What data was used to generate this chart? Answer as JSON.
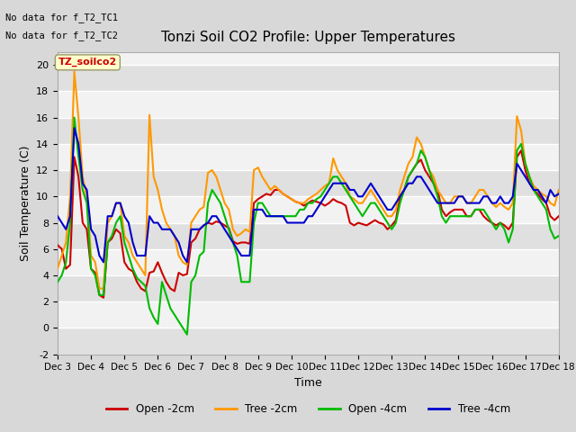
{
  "title": "Tonzi Soil CO2 Profile: Upper Temperatures",
  "xlabel": "Time",
  "ylabel": "Soil Temperature (C)",
  "ylim": [
    -2,
    21
  ],
  "yticks": [
    -2,
    0,
    2,
    4,
    6,
    8,
    10,
    12,
    14,
    16,
    18,
    20
  ],
  "no_data_text": [
    "No data for f_T2_TC1",
    "No data for f_T2_TC2"
  ],
  "annotation_box": "TZ_soilco2",
  "bg_color": "#e8e8e8",
  "plot_bg_color": "#f0f0f0",
  "grid_color": "#ffffff",
  "series": {
    "open_2cm": {
      "color": "#cc0000",
      "label": "Open -2cm",
      "linestyle": "-",
      "linewidth": 1.5
    },
    "tree_2cm": {
      "color": "#ff9900",
      "label": "Tree -2cm",
      "linestyle": "-",
      "linewidth": 1.5
    },
    "open_4cm": {
      "color": "#00bb00",
      "label": "Open -4cm",
      "linestyle": "-",
      "linewidth": 1.5
    },
    "tree_4cm": {
      "color": "#0000cc",
      "label": "Tree -4cm",
      "linestyle": "-",
      "linewidth": 1.5
    }
  },
  "xtick_labels": [
    "Dec 3",
    "Dec 4",
    "Dec 5",
    "Dec 6",
    "Dec 7",
    "Dec 8",
    "Dec 9",
    "Dec 10",
    "Dec 11",
    "Dec 12",
    "Dec 13",
    "Dec 14",
    "Dec 15",
    "Dec 16",
    "Dec 17",
    "Dec 18"
  ],
  "open_2cm": [
    6.3,
    6.0,
    4.5,
    4.8,
    13.0,
    11.5,
    8.0,
    7.5,
    4.5,
    4.2,
    2.5,
    2.3,
    6.5,
    6.8,
    7.5,
    7.2,
    5.0,
    4.5,
    4.3,
    3.5,
    3.0,
    2.8,
    4.2,
    4.3,
    5.0,
    4.2,
    3.5,
    3.0,
    2.8,
    4.2,
    4.0,
    4.1,
    6.5,
    6.8,
    7.5,
    7.8,
    8.0,
    7.9,
    8.1,
    8.0,
    7.8,
    7.6,
    6.6,
    6.4,
    6.5,
    6.5,
    6.4,
    9.5,
    9.8,
    10.0,
    10.2,
    10.1,
    10.5,
    10.5,
    10.2,
    10.0,
    9.8,
    9.6,
    9.5,
    9.3,
    9.5,
    9.7,
    9.6,
    9.5,
    9.3,
    9.5,
    9.8,
    9.6,
    9.5,
    9.3,
    8.0,
    7.8,
    8.0,
    7.9,
    7.8,
    8.0,
    8.2,
    8.0,
    7.9,
    7.5,
    7.8,
    8.2,
    10.0,
    10.5,
    11.5,
    12.0,
    12.5,
    12.8,
    12.0,
    11.5,
    11.0,
    10.5,
    9.0,
    8.5,
    8.8,
    9.0,
    9.0,
    9.0,
    8.5,
    8.5,
    9.0,
    9.0,
    8.5,
    8.2,
    8.0,
    7.8,
    8.0,
    7.8,
    7.5,
    8.0,
    13.0,
    13.5,
    12.0,
    11.0,
    10.5,
    10.2,
    9.8,
    9.5,
    8.5,
    8.2,
    8.5
  ],
  "tree_2cm": [
    4.5,
    5.5,
    6.5,
    10.0,
    19.5,
    16.0,
    11.5,
    10.0,
    5.5,
    5.0,
    3.0,
    3.0,
    8.0,
    8.5,
    9.5,
    9.5,
    7.0,
    6.5,
    5.5,
    5.0,
    4.5,
    4.0,
    16.2,
    11.5,
    10.5,
    9.0,
    8.0,
    7.5,
    7.0,
    5.5,
    5.0,
    4.8,
    8.0,
    8.5,
    9.0,
    9.2,
    11.8,
    12.0,
    11.5,
    10.5,
    9.5,
    9.0,
    7.5,
    7.0,
    7.2,
    7.5,
    7.3,
    12.0,
    12.2,
    11.5,
    11.0,
    10.5,
    10.8,
    10.5,
    10.2,
    10.0,
    9.8,
    9.6,
    9.5,
    9.5,
    9.8,
    10.0,
    10.2,
    10.5,
    10.8,
    11.0,
    12.9,
    12.0,
    11.5,
    11.0,
    10.0,
    9.8,
    9.5,
    9.5,
    10.0,
    10.5,
    10.0,
    9.5,
    9.0,
    8.5,
    8.5,
    9.0,
    10.5,
    11.5,
    12.5,
    13.0,
    14.5,
    14.0,
    13.0,
    12.0,
    11.5,
    10.5,
    10.0,
    9.5,
    9.5,
    10.0,
    10.0,
    10.0,
    9.5,
    9.5,
    10.0,
    10.5,
    10.5,
    10.0,
    9.5,
    9.2,
    9.5,
    9.2,
    9.0,
    9.5,
    16.1,
    15.0,
    12.5,
    11.5,
    10.8,
    10.5,
    10.2,
    10.0,
    9.5,
    9.3,
    10.5
  ],
  "open_4cm": [
    3.5,
    4.0,
    5.0,
    8.0,
    16.0,
    13.0,
    10.5,
    9.5,
    4.5,
    4.0,
    2.5,
    2.5,
    6.5,
    7.0,
    8.0,
    8.5,
    6.5,
    5.5,
    4.5,
    3.8,
    3.5,
    3.2,
    1.5,
    0.8,
    0.3,
    3.5,
    2.5,
    1.5,
    1.0,
    0.5,
    0.0,
    -0.5,
    3.5,
    4.0,
    5.5,
    5.8,
    9.5,
    10.5,
    10.0,
    9.5,
    8.5,
    7.5,
    6.5,
    5.5,
    3.5,
    3.5,
    3.5,
    8.0,
    9.5,
    9.5,
    9.0,
    8.5,
    8.5,
    8.5,
    8.5,
    8.5,
    8.5,
    8.5,
    9.0,
    9.0,
    9.5,
    9.5,
    9.8,
    10.0,
    10.5,
    11.0,
    11.5,
    11.5,
    11.0,
    10.5,
    10.0,
    9.5,
    9.0,
    8.5,
    9.0,
    9.5,
    9.5,
    9.0,
    8.5,
    8.0,
    7.5,
    8.0,
    9.5,
    10.5,
    11.5,
    12.0,
    12.5,
    13.5,
    13.0,
    12.0,
    11.0,
    10.0,
    8.5,
    8.0,
    8.5,
    8.5,
    8.5,
    8.5,
    8.5,
    8.5,
    9.0,
    9.0,
    9.0,
    8.5,
    8.0,
    7.5,
    8.0,
    7.5,
    6.5,
    7.5,
    13.5,
    14.0,
    12.5,
    11.5,
    10.5,
    10.0,
    9.5,
    9.0,
    7.5,
    6.8,
    7.0
  ],
  "tree_4cm": [
    8.5,
    8.0,
    7.5,
    8.5,
    15.2,
    14.0,
    11.0,
    10.5,
    7.5,
    7.0,
    5.5,
    5.0,
    8.5,
    8.5,
    9.5,
    9.5,
    8.5,
    8.0,
    6.5,
    5.5,
    5.5,
    5.5,
    8.5,
    8.0,
    8.0,
    7.5,
    7.5,
    7.5,
    7.0,
    6.5,
    5.5,
    5.0,
    7.5,
    7.5,
    7.5,
    7.8,
    8.0,
    8.5,
    8.5,
    8.0,
    7.5,
    7.0,
    6.5,
    6.0,
    5.5,
    5.5,
    5.5,
    9.0,
    9.0,
    9.0,
    8.5,
    8.5,
    8.5,
    8.5,
    8.5,
    8.0,
    8.0,
    8.0,
    8.0,
    8.0,
    8.5,
    8.5,
    9.0,
    9.5,
    10.0,
    10.5,
    11.0,
    11.0,
    11.0,
    11.0,
    10.5,
    10.5,
    10.0,
    10.0,
    10.5,
    11.0,
    10.5,
    10.0,
    9.5,
    9.0,
    9.0,
    9.5,
    10.0,
    10.5,
    11.0,
    11.0,
    11.5,
    11.5,
    11.0,
    10.5,
    10.0,
    9.5,
    9.5,
    9.5,
    9.5,
    9.5,
    10.0,
    10.0,
    9.5,
    9.5,
    9.5,
    9.5,
    10.0,
    10.0,
    9.5,
    9.5,
    10.0,
    9.5,
    9.5,
    10.0,
    12.5,
    12.0,
    11.5,
    11.0,
    10.5,
    10.5,
    10.0,
    9.5,
    10.5,
    10.0,
    10.2
  ]
}
